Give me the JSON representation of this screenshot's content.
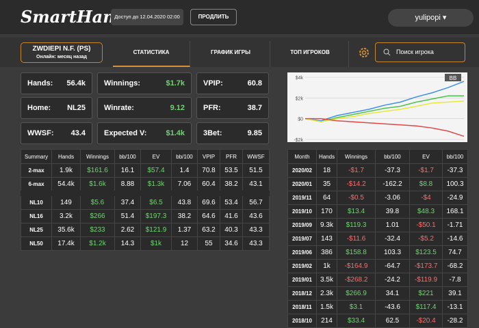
{
  "header": {
    "logo": "SmartHand",
    "access": "Доступ до 12.04.2020 02:00",
    "renew": "ПРОДЛИТЬ",
    "user": "yulipopi"
  },
  "player": {
    "name": "ZWDIEPI N.F. (PS)",
    "status": "Онлайн: месяц назад"
  },
  "tabs": [
    "СТАТИСТИКА",
    "ГРАФИК ИГРЫ",
    "ТОП ИГРОКОВ"
  ],
  "search": "Поиск игрока",
  "stats": [
    {
      "label": "Hands:",
      "value": "56.4k"
    },
    {
      "label": "Winnings:",
      "value": "$1.7k"
    },
    {
      "label": "VPIP:",
      "value": "60.8"
    },
    {
      "label": "Home:",
      "value": "NL25"
    },
    {
      "label": "Winrate:",
      "value": "9.12"
    },
    {
      "label": "PFR:",
      "value": "38.7"
    },
    {
      "label": "WWSF:",
      "value": "43.4"
    },
    {
      "label": "Expected V:",
      "value": "$1.4k"
    },
    {
      "label": "3Bet:",
      "value": "9.85"
    }
  ],
  "graph": {
    "badge": "BB",
    "ylim": [
      -2000,
      4000
    ],
    "yticks": [
      {
        "value": 4000,
        "label": "$4k"
      },
      {
        "value": 2000,
        "label": "$2k"
      },
      {
        "value": 0,
        "label": "$0"
      },
      {
        "value": -2000,
        "label": "-$2k"
      }
    ],
    "series": [
      {
        "color": "#3d8fe8",
        "values": [
          0,
          -200,
          300,
          600,
          900,
          1300,
          1600,
          2100,
          2500,
          3000,
          3600
        ]
      },
      {
        "color": "#4cc34c",
        "values": [
          0,
          -300,
          100,
          400,
          700,
          1000,
          1200,
          1600,
          1900,
          2200,
          2200
        ]
      },
      {
        "color": "#e8e83c",
        "values": [
          0,
          -300,
          0,
          200,
          500,
          700,
          900,
          1200,
          1500,
          1600,
          1700
        ]
      },
      {
        "color": "#e04848",
        "values": [
          0,
          0,
          -200,
          -300,
          -400,
          -500,
          -600,
          -700,
          -900,
          -1200,
          -1700
        ]
      }
    ]
  },
  "summary": {
    "columns": [
      "Summary",
      "Hands",
      "Winnings",
      "bb/100",
      "EV",
      "bb/100",
      "VPIP",
      "PFR",
      "WWSF"
    ],
    "groups": [
      [
        [
          "2-max",
          "1.9k",
          "$161.6",
          "16.1",
          "$57.4",
          "1.4",
          "70.8",
          "53.5",
          "51.5"
        ],
        [
          "6-max",
          "54.4k",
          "$1.6k",
          "8.88",
          "$1.3k",
          "7.06",
          "60.4",
          "38.2",
          "43.1"
        ]
      ],
      [
        [
          "NL10",
          "149",
          "$5.6",
          "37.4",
          "$6.5",
          "43.8",
          "69.6",
          "53.4",
          "56.7"
        ],
        [
          "NL16",
          "3.2k",
          "$266",
          "51.4",
          "$197.3",
          "38.2",
          "64.6",
          "41.6",
          "43.6"
        ],
        [
          "NL25",
          "35.6k",
          "$233",
          "2.62",
          "$121.9",
          "1.37",
          "63.2",
          "40.3",
          "43.3"
        ],
        [
          "NL50",
          "17.4k",
          "$1.2k",
          "14.3",
          "$1k",
          "12",
          "55",
          "34.6",
          "43.3"
        ]
      ]
    ]
  },
  "months": {
    "columns": [
      "Month",
      "Hands",
      "Winnings",
      "bb/100",
      "EV",
      "bb/100"
    ],
    "rows": [
      [
        "2020/02",
        "18",
        "-$1.7",
        "-37.3",
        "-$1.7",
        "-37.3"
      ],
      [
        "2020/01",
        "35",
        "-$14.2",
        "-162.2",
        "$8.8",
        "100.3"
      ],
      [
        "2019/11",
        "64",
        "-$0.5",
        "-3.06",
        "-$4",
        "-24.9"
      ],
      [
        "2019/10",
        "170",
        "$13.4",
        "39.8",
        "$48.3",
        "168.1"
      ],
      [
        "2019/09",
        "9.3k",
        "$119.3",
        "1.01",
        "-$50.1",
        "-1.71"
      ],
      [
        "2019/07",
        "143",
        "-$11.6",
        "-32.4",
        "-$5.2",
        "-14.6"
      ],
      [
        "2019/06",
        "386",
        "$158.8",
        "103.3",
        "$123.5",
        "74.7"
      ],
      [
        "2019/02",
        "1k",
        "-$164.9",
        "-64.7",
        "-$173.7",
        "-68.2"
      ],
      [
        "2019/01",
        "3.5k",
        "-$268.2",
        "-24.2",
        "-$119.9",
        "-7.8"
      ],
      [
        "2018/12",
        "2.3k",
        "$266.9",
        "34.1",
        "$221",
        "39.1"
      ],
      [
        "2018/11",
        "1.5k",
        "$3.1",
        "-43.6",
        "$117.4",
        "-13.1"
      ],
      [
        "2018/10",
        "214",
        "$33.4",
        "62.5",
        "-$20.4",
        "-28.2"
      ]
    ]
  }
}
